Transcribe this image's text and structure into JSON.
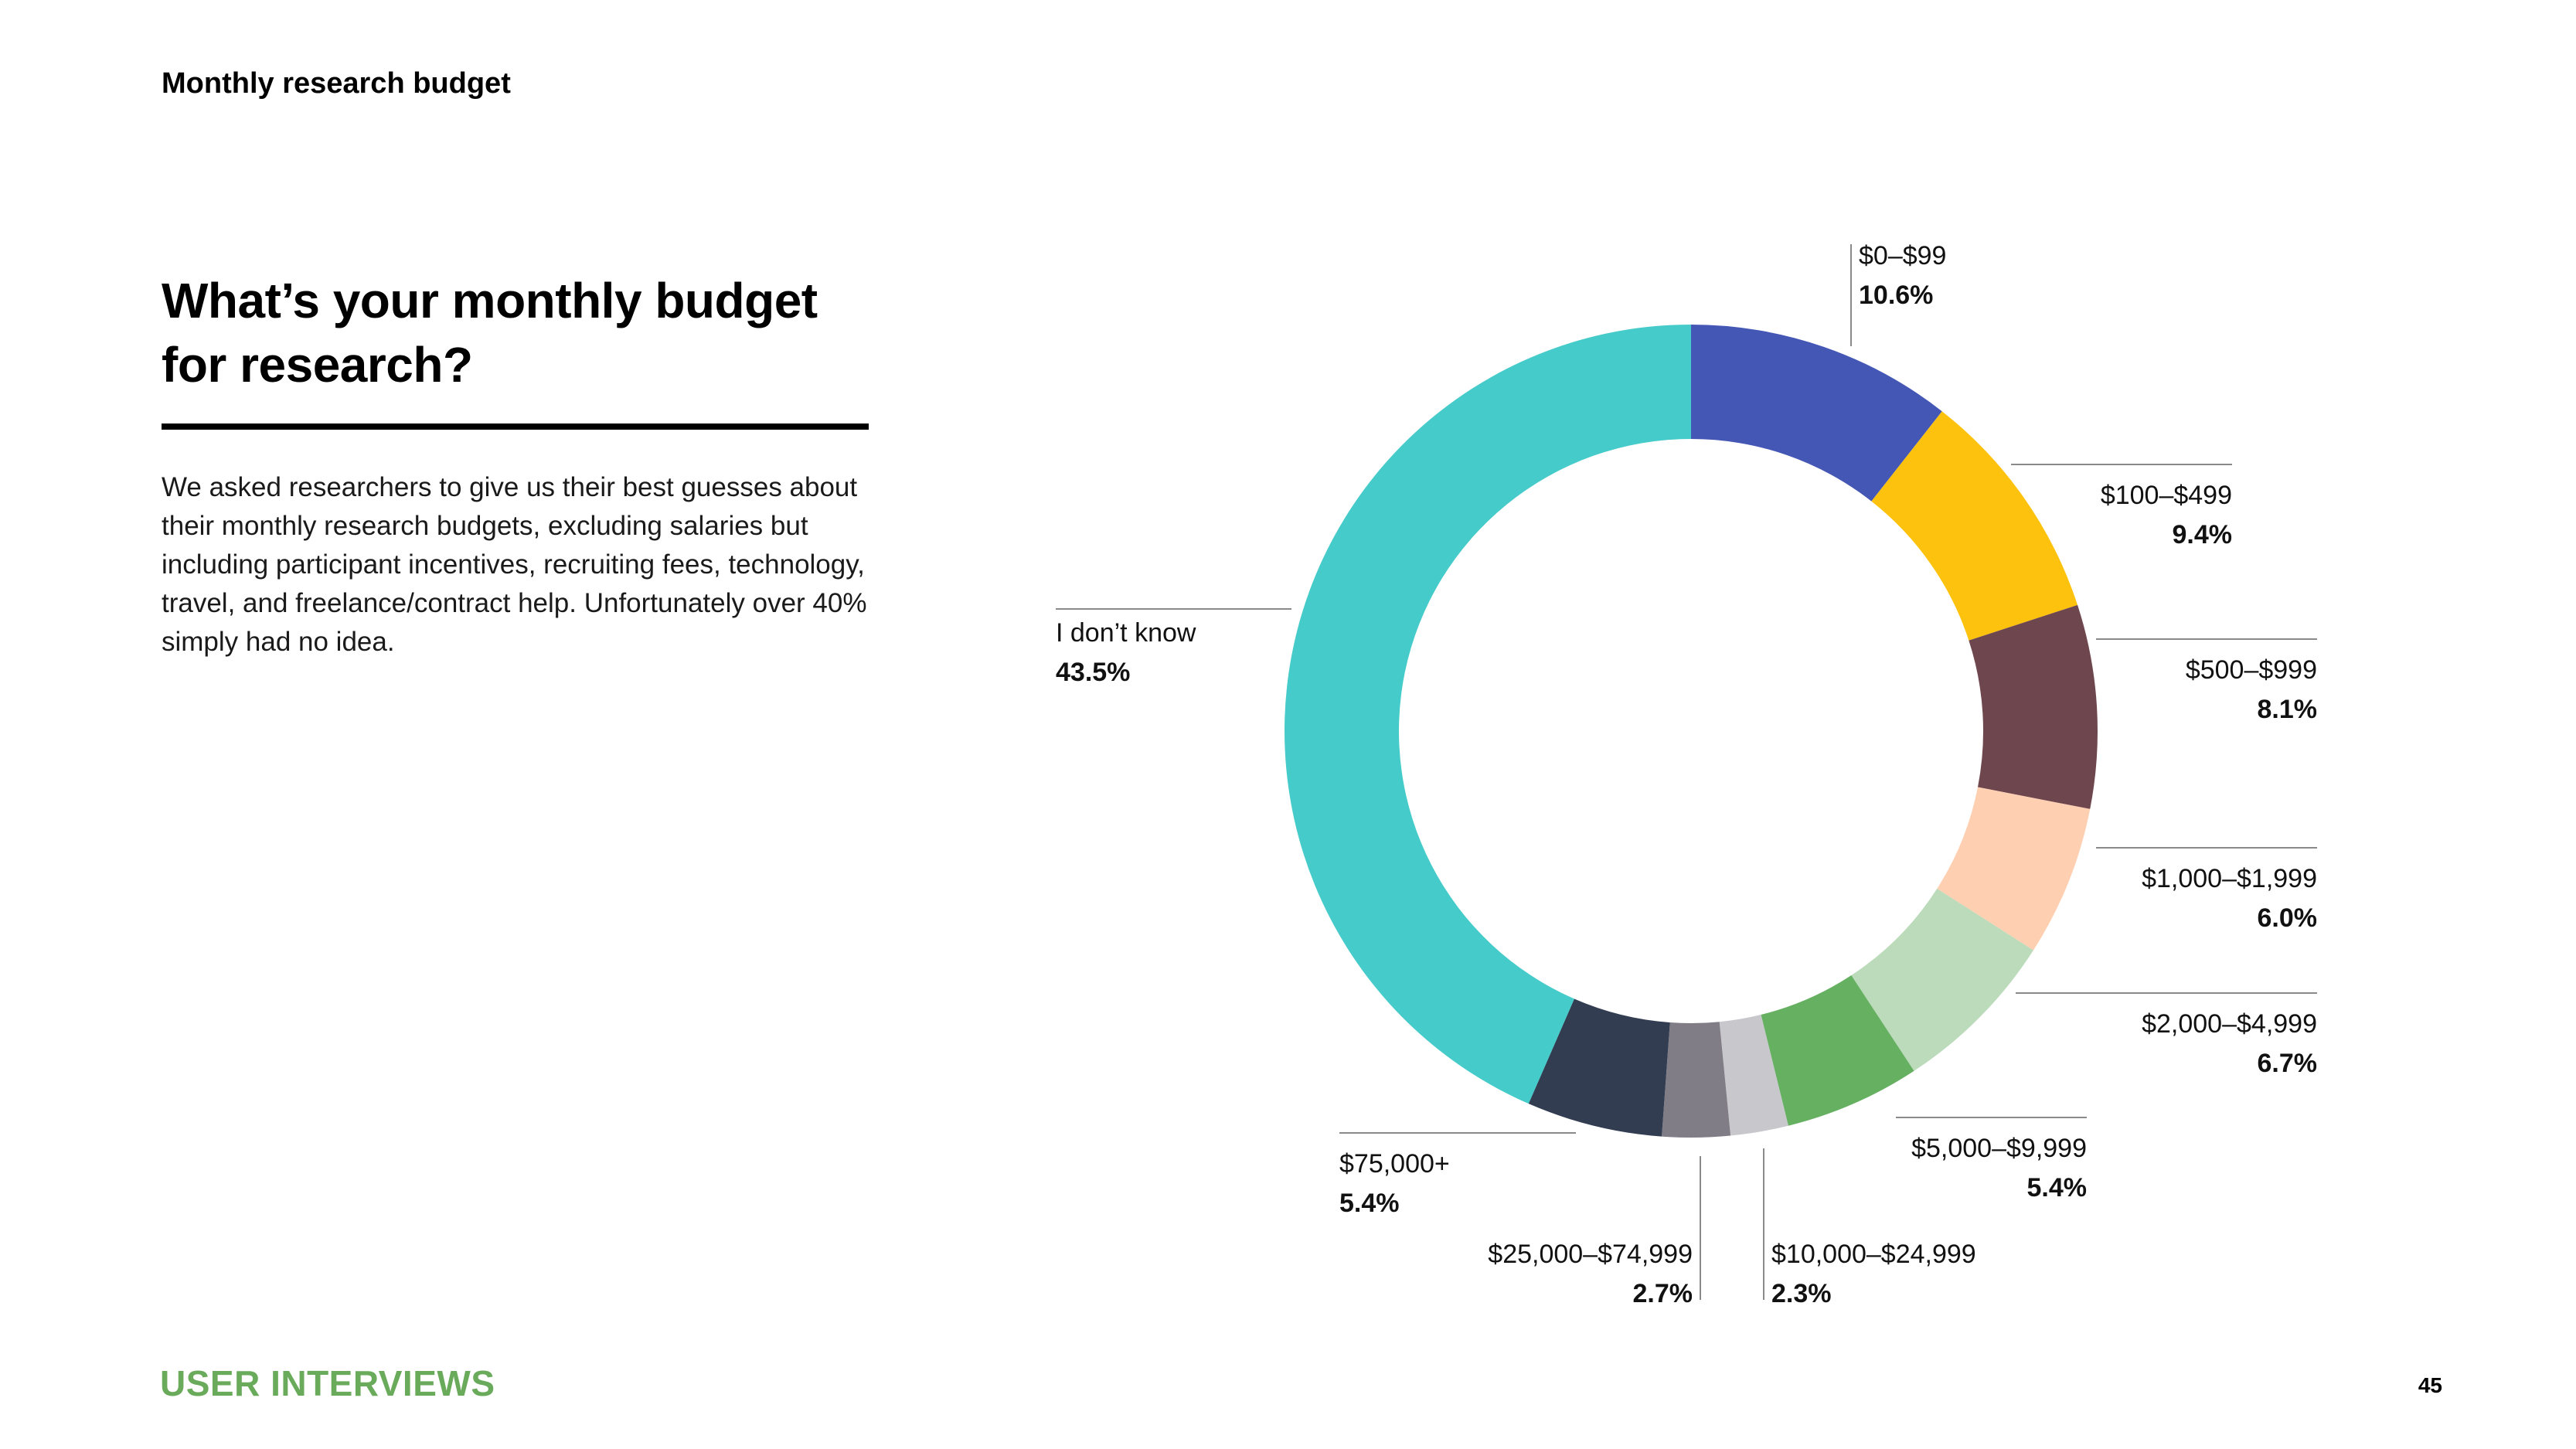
{
  "header": {
    "section_label": "Monthly research budget"
  },
  "intro": {
    "headline": "What’s your monthly budget for research?",
    "body": "We asked researchers to give us their best guesses about their monthly research budgets, excluding salaries but including participant incentives, recruiting fees, technology, travel, and freelance/contract help. Unfortunately over 40% simply had no idea."
  },
  "footer": {
    "brand": "USER INTERVIEWS",
    "brand_color": "#6aaa5b",
    "page_number": "45"
  },
  "chart_data": {
    "type": "pie",
    "variant": "donut",
    "title": "",
    "start": "top",
    "direction": "clockwise",
    "slices": [
      {
        "label": "$0–$99",
        "value": 10.6,
        "display": "10.6%",
        "color": "#4557b5"
      },
      {
        "label": "$100–$499",
        "value": 9.4,
        "display": "9.4%",
        "color": "#fdc20e"
      },
      {
        "label": "$500–$999",
        "value": 8.1,
        "display": "8.1%",
        "color": "#6e474e"
      },
      {
        "label": "$1,000–$1,999",
        "value": 6.0,
        "display": "6.0%",
        "color": "#ffcfb2"
      },
      {
        "label": "$2,000–$4,999",
        "value": 6.7,
        "display": "6.7%",
        "color": "#bcdbbb"
      },
      {
        "label": "$5,000–$9,999",
        "value": 5.4,
        "display": "5.4%",
        "color": "#66b062"
      },
      {
        "label": "$10,000–$24,999",
        "value": 2.3,
        "display": "2.3%",
        "color": "#c8c8cc"
      },
      {
        "label": "$25,000–$74,999",
        "value": 2.7,
        "display": "2.7%",
        "color": "#817d87"
      },
      {
        "label": "$75,000+",
        "value": 5.4,
        "display": "5.4%",
        "color": "#323d51"
      },
      {
        "label": "I don’t know",
        "value": 43.5,
        "display": "43.5%",
        "color": "#45cbc9"
      }
    ]
  }
}
